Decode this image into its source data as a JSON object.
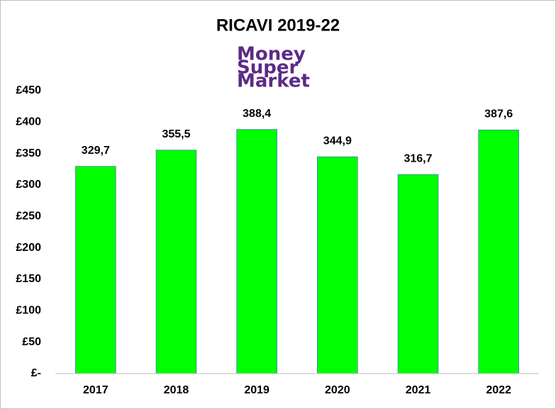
{
  "chart_data": {
    "type": "bar",
    "title": "RICAVI 2019-22",
    "logo": [
      "Money",
      "Super",
      "Market"
    ],
    "categories": [
      "2017",
      "2018",
      "2019",
      "2020",
      "2021",
      "2022"
    ],
    "values": [
      329.7,
      355.5,
      388.4,
      344.9,
      316.7,
      387.6
    ],
    "value_labels": [
      "329,7",
      "355,5",
      "388,4",
      "344,9",
      "316,7",
      "387,6"
    ],
    "color": "#00ff00",
    "ylim": [
      0,
      450
    ],
    "yticks": [
      {
        "value": 0,
        "label": "£-"
      },
      {
        "value": 50,
        "label": "£50"
      },
      {
        "value": 100,
        "label": "£100"
      },
      {
        "value": 150,
        "label": "£150"
      },
      {
        "value": 200,
        "label": "£200"
      },
      {
        "value": 250,
        "label": "£250"
      },
      {
        "value": 300,
        "label": "£300"
      },
      {
        "value": 350,
        "label": "£350"
      },
      {
        "value": 400,
        "label": "£400"
      },
      {
        "value": 450,
        "label": "£450"
      }
    ],
    "grid": false
  }
}
